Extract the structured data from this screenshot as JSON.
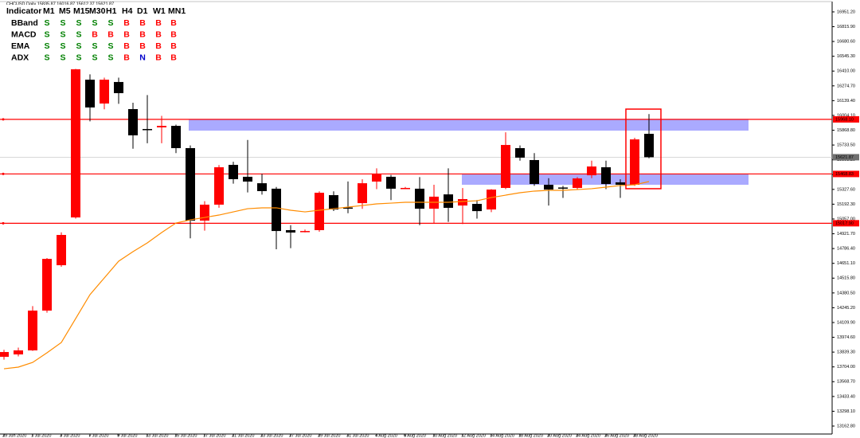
{
  "chart_data": {
    "type": "candlestick",
    "title": "CHCUSD,Daily 15835.87 16016.87 15612.37 15621.87",
    "categories": [
      "29 Jun 2020",
      null,
      "1 Jul 2020",
      null,
      "3 Jul 2020",
      null,
      "7 Jul 2020",
      null,
      "9 Jul 2020",
      null,
      "13 Jul 2020",
      null,
      "15 Jul 2020",
      null,
      "17 Jul 2020",
      null,
      "21 Jul 2020",
      null,
      "23 Jul 2020",
      null,
      "27 Jul 2020",
      null,
      "29 Jul 2020",
      null,
      "31 Jul 2020",
      null,
      "4 Aug 2020",
      null,
      "6 Aug 2020",
      null,
      "10 Aug 2020",
      null,
      "12 Aug 2020",
      null,
      "14 Aug 2020",
      null,
      "18 Aug 2020",
      null,
      "20 Aug 2020",
      null,
      "24 Aug 2020",
      null,
      "26 Aug 2020",
      null,
      "28 Aug 2020",
      null
    ],
    "open": [
      13796,
      13818,
      13855,
      14219,
      14634,
      15071,
      16331,
      16113,
      16310,
      16062,
      15880,
      15895,
      15909,
      15705,
      15042,
      15188,
      15552,
      15443,
      15384,
      15334,
      14955,
      14940,
      14955,
      15275,
      15162,
      15202,
      15399,
      15443,
      15337,
      15334,
      15151,
      15282,
      15180,
      15195,
      15144,
      15341,
      15705,
      15596,
      15370,
      15345,
      15341,
      15457,
      15530,
      15392,
      15370,
      15835.87
    ],
    "high": [
      13860,
      13880,
      14260,
      14700,
      14935,
      16430,
      16380,
      16350,
      16350,
      16120,
      16190,
      16000,
      15920,
      15730,
      15220,
      15550,
      15580,
      15780,
      15470,
      15350,
      15000,
      14960,
      15310,
      15310,
      15400,
      15420,
      15520,
      15460,
      15350,
      15440,
      15370,
      15520,
      15340,
      15230,
      15330,
      15850,
      15730,
      15660,
      15430,
      15360,
      15440,
      15590,
      15590,
      15420,
      15800,
      16016.87
    ],
    "low": [
      13770,
      13800,
      13850,
      14200,
      14620,
      15060,
      15950,
      16060,
      16110,
      15700,
      15750,
      15750,
      15660,
      14880,
      14950,
      15160,
      15380,
      15300,
      15280,
      14780,
      14790,
      14935,
      14940,
      15130,
      15110,
      15150,
      15330,
      15230,
      15330,
      15000,
      15020,
      15030,
      15010,
      15060,
      15120,
      15330,
      15590,
      15360,
      15180,
      15250,
      15330,
      15430,
      15330,
      15250,
      15360,
      15612.37
    ],
    "close": [
      13840,
      13855,
      14219,
      14692,
      14911,
      16426,
      16077,
      16331,
      16208,
      15822,
      15875,
      15909,
      15705,
      15042,
      15188,
      15530,
      15421,
      15399,
      15312,
      14947,
      14933,
      14947,
      15297,
      15144,
      15155,
      15384,
      15472,
      15334,
      15341,
      15151,
      15261,
      15159,
      15239,
      15129,
      15326,
      15734,
      15618,
      15377,
      15326,
      15341,
      15428,
      15537,
      15377,
      15370,
      15785,
      15621.87
    ],
    "up_color": "#ff0000",
    "down_color": "#000000",
    "lines": [
      {
        "color": "#ff8c00",
        "values": [
          13687,
          13702,
          13745,
          13833,
          13927,
          14146,
          14365,
          14518,
          14671,
          14758,
          14838,
          14933,
          15020,
          15049,
          15071,
          15093,
          15122,
          15151,
          15159,
          15159,
          15137,
          15122,
          15137,
          15151,
          15166,
          15180,
          15195,
          15202,
          15210,
          15210,
          15210,
          15210,
          15217,
          15224,
          15253,
          15275,
          15297,
          15312,
          15319,
          15319,
          15326,
          15334,
          15348,
          15363,
          15370,
          15399
        ]
      }
    ],
    "ylim": [
      13090,
      17060
    ],
    "yticks": [
      {
        "value": 13162.8,
        "label": "13162.80"
      },
      {
        "value": 13298.1,
        "label": "13298.10"
      },
      {
        "value": 13433.4,
        "label": "13433.40"
      },
      {
        "value": 13568.7,
        "label": "13568.70"
      },
      {
        "value": 13704,
        "label": "13704.00"
      },
      {
        "value": 13839.3,
        "label": "13839.30"
      },
      {
        "value": 13974.6,
        "label": "13974.60"
      },
      {
        "value": 14109.9,
        "label": "14109.90"
      },
      {
        "value": 14245.2,
        "label": "14245.20"
      },
      {
        "value": 14380.5,
        "label": "14380.50"
      },
      {
        "value": 14515.8,
        "label": "14515.80"
      },
      {
        "value": 14651.1,
        "label": "14651.10"
      },
      {
        "value": 14786.4,
        "label": "14786.40"
      },
      {
        "value": 14921.7,
        "label": "14921.70"
      },
      {
        "value": 15057,
        "label": "15057.00"
      },
      {
        "value": 15192.3,
        "label": "15192.30"
      },
      {
        "value": 15327.6,
        "label": "15327.60"
      },
      {
        "value": 15462.9,
        "label": "15462.90"
      },
      {
        "value": 15598.2,
        "label": "15598.20"
      },
      {
        "value": 15733.5,
        "label": "15733.50"
      },
      {
        "value": 15868.8,
        "label": "15868.80"
      },
      {
        "value": 16004.1,
        "label": "16004.10"
      },
      {
        "value": 16139.4,
        "label": "16139.40"
      },
      {
        "value": 16274.7,
        "label": "16274.70"
      },
      {
        "value": 16410,
        "label": "16410.00"
      },
      {
        "value": 16545.3,
        "label": "16545.30"
      },
      {
        "value": 16680.6,
        "label": "16680.60"
      },
      {
        "value": 16815.9,
        "label": "16815.90"
      },
      {
        "value": 16951.2,
        "label": "16951.20"
      }
    ],
    "levels": [
      {
        "value": 15968.1,
        "label": "15968.10"
      },
      {
        "value": 15468.83,
        "label": "15468.83"
      },
      {
        "value": 15017.9,
        "label": "15017.90"
      }
    ],
    "level_color": "#ff0000",
    "price_tag": {
      "value": 15621.87,
      "label": "15621.87"
    },
    "zones": [
      {
        "low": 15865,
        "high": 15968
      },
      {
        "low": 15370,
        "high": 15469
      }
    ],
    "zone_color": "#aaaaff",
    "highlight": {
      "low": 15334,
      "high": 16062,
      "color": "#ff0000"
    }
  },
  "indicator_table": {
    "header": [
      "Indicator",
      "M1",
      "M5",
      "M15",
      "M30",
      "H1",
      "H4",
      "D1",
      "W1",
      "MN1"
    ],
    "rows": [
      [
        "BBand",
        "S",
        "S",
        "S",
        "S",
        "S",
        "B",
        "B",
        "B",
        "B"
      ],
      [
        "MACD",
        "S",
        "S",
        "S",
        "B",
        "B",
        "B",
        "B",
        "B",
        "B"
      ],
      [
        "EMA",
        "S",
        "S",
        "S",
        "S",
        "S",
        "B",
        "B",
        "B",
        "B"
      ],
      [
        "ADX",
        "S",
        "S",
        "S",
        "S",
        "S",
        "B",
        "N",
        "B",
        "B"
      ]
    ],
    "signal_colors": {
      "S": "#008000",
      "B": "#ff0000",
      "N": "#0000cc"
    }
  }
}
